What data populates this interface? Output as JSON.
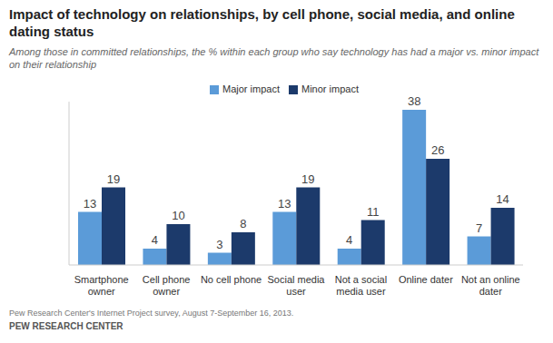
{
  "chart_data": {
    "type": "bar",
    "title": "Impact of technology on relationships, by cell phone, social media, and online dating status",
    "subtitle": "Among those in committed relationships,  the % within each group who say technology has had a major vs. minor impact on their relationship",
    "categories": [
      "Smartphone owner",
      "Cell phone owner",
      "No cell phone",
      "Social media user",
      "Not a social media user",
      "Online dater",
      "Not an online dater"
    ],
    "series": [
      {
        "name": "Major impact",
        "color": "#5b9bd8",
        "values": [
          13,
          4,
          3,
          13,
          4,
          38,
          7
        ]
      },
      {
        "name": "Minor impact",
        "color": "#1c3a6b",
        "values": [
          19,
          10,
          8,
          19,
          11,
          26,
          14
        ]
      }
    ],
    "ylim": [
      0,
      40
    ],
    "legend": "top",
    "data_labels": true,
    "tick_labels": "x",
    "source": "Pew Research Center's Internet Project survey, August 7-September 16, 2013.",
    "credit": "PEW RESEARCH CENTER"
  }
}
